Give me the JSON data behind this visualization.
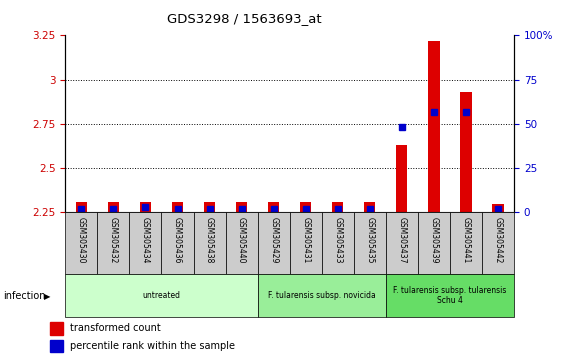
{
  "title": "GDS3298 / 1563693_at",
  "samples": [
    "GSM305430",
    "GSM305432",
    "GSM305434",
    "GSM305436",
    "GSM305438",
    "GSM305440",
    "GSM305429",
    "GSM305431",
    "GSM305433",
    "GSM305435",
    "GSM305437",
    "GSM305439",
    "GSM305441",
    "GSM305442"
  ],
  "transformed_count": [
    2.31,
    2.31,
    2.31,
    2.31,
    2.31,
    2.31,
    2.31,
    2.31,
    2.31,
    2.31,
    2.63,
    3.22,
    2.93,
    2.3
  ],
  "percentile_rank": [
    2,
    2,
    3,
    2,
    2,
    2,
    2,
    2,
    2,
    2,
    48,
    57,
    57,
    2
  ],
  "ylim_left": [
    2.25,
    3.25
  ],
  "ylim_right": [
    0,
    100
  ],
  "yticks_left": [
    2.25,
    2.5,
    2.75,
    3.0,
    3.25
  ],
  "yticks_right": [
    0,
    25,
    50,
    75,
    100
  ],
  "bar_color_red": "#DD0000",
  "bar_color_blue": "#0000CC",
  "groups": [
    {
      "label": "untreated",
      "start": 0,
      "end": 6,
      "color": "#ccffcc"
    },
    {
      "label": "F. tularensis subsp. novicida",
      "start": 6,
      "end": 10,
      "color": "#99ee99"
    },
    {
      "label": "F. tularensis subsp. tularensis\nSchu 4",
      "start": 10,
      "end": 14,
      "color": "#66dd66"
    }
  ],
  "group_label_prefix": "infection",
  "legend_red_label": "transformed count",
  "legend_blue_label": "percentile rank within the sample",
  "left_label_color": "#CC0000",
  "right_label_color": "#0000CC",
  "grid_color": "#000000",
  "bg_color": "#ffffff",
  "sample_box_color": "#cccccc",
  "bar_bottom": 2.25
}
